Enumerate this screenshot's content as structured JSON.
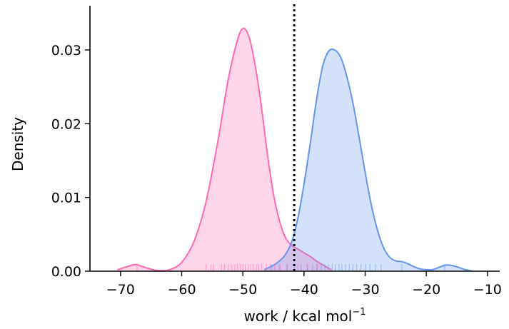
{
  "chart_data": {
    "type": "area",
    "title": "",
    "xlabel": "work / kcal mol",
    "xlabel_superscript": "−1",
    "ylabel": "Density",
    "xlim": [
      -75,
      -8
    ],
    "ylim": [
      0,
      0.036
    ],
    "xticks": [
      -70,
      -60,
      -50,
      -40,
      -30,
      -20,
      -10
    ],
    "xtick_labels": [
      "−70",
      "−60",
      "−50",
      "−40",
      "−30",
      "−20",
      "−10"
    ],
    "yticks": [
      0,
      0.01,
      0.02,
      0.03
    ],
    "ytick_labels": [
      "0.00",
      "0.01",
      "0.02",
      "0.03"
    ],
    "grid": false,
    "legend": "none",
    "vline": {
      "x": -41.6,
      "style": "dotted",
      "color": "#000000"
    },
    "series": [
      {
        "color": "#ff69b4",
        "fill_opacity": 0.28,
        "x": [
          -70.5,
          -69,
          -67.5,
          -66,
          -64,
          -62,
          -60,
          -58,
          -56,
          -54,
          -52.5,
          -51,
          -50,
          -49,
          -48,
          -47,
          -46,
          -45,
          -44,
          -43,
          -42,
          -41,
          -40,
          -39,
          -38,
          -37,
          -36,
          -35.5
        ],
        "values": [
          0.0002,
          0.0006,
          0.0009,
          0.0005,
          0.0001,
          0.0002,
          0.0012,
          0.004,
          0.0095,
          0.018,
          0.0255,
          0.031,
          0.0329,
          0.0318,
          0.028,
          0.0225,
          0.016,
          0.0105,
          0.0068,
          0.0045,
          0.0035,
          0.003,
          0.0025,
          0.002,
          0.0014,
          0.0009,
          0.0004,
          0.0002
        ],
        "rug": [
          -67.3,
          -56,
          -55.2,
          -54.8,
          -53.5,
          -53,
          -52.4,
          -51.8,
          -51.3,
          -50.9,
          -50.4,
          -50,
          -49.6,
          -49.1,
          -48.7,
          -48.3,
          -47.8,
          -47.4,
          -46.9,
          -46.2,
          -45.5,
          -44.8,
          -43.9,
          -42.7,
          -41,
          -39.5,
          -37.8
        ]
      },
      {
        "color": "#6495ed",
        "fill_opacity": 0.28,
        "x": [
          -46.5,
          -45,
          -44,
          -43,
          -42,
          -41,
          -40,
          -39,
          -38,
          -37,
          -36,
          -35,
          -34,
          -33,
          -32,
          -31,
          -30,
          -29,
          -28,
          -27,
          -26,
          -25,
          -24,
          -23,
          -22,
          -21,
          -20,
          -19,
          -18,
          -17,
          -16,
          -15,
          -14,
          -13,
          -12.5
        ],
        "values": [
          0.0002,
          0.0008,
          0.0014,
          0.0023,
          0.004,
          0.0072,
          0.0118,
          0.0172,
          0.023,
          0.0276,
          0.0298,
          0.03,
          0.029,
          0.0264,
          0.0228,
          0.0182,
          0.0134,
          0.009,
          0.0056,
          0.0032,
          0.0019,
          0.0014,
          0.0013,
          0.001,
          0.0006,
          0.0003,
          0.0002,
          0.0002,
          0.0005,
          0.0008,
          0.0008,
          0.0006,
          0.0003,
          0.0001,
          0.0
        ],
        "rug": [
          -45.3,
          -44.1,
          -42.8,
          -41.6,
          -40.5,
          -39.4,
          -38.6,
          -37.9,
          -37.2,
          -36.6,
          -36,
          -35.4,
          -34.9,
          -34.3,
          -33.8,
          -33.2,
          -32.6,
          -32,
          -31.4,
          -30.7,
          -29.9,
          -29.2,
          -28.3,
          -27.4,
          -24,
          -17
        ]
      }
    ]
  }
}
